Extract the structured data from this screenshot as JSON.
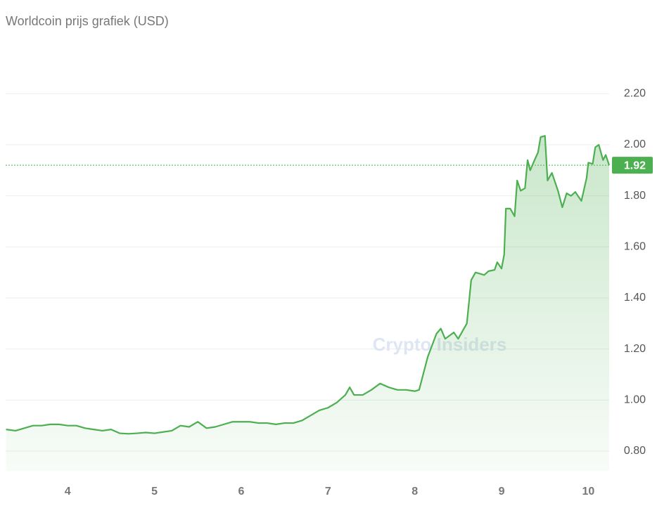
{
  "chart_data": {
    "type": "line",
    "title": "Worldcoin prijs grafiek (USD)",
    "watermark": "Crypto Insiders",
    "x": [
      3.29,
      3.4,
      3.5,
      3.6,
      3.7,
      3.8,
      3.9,
      4.0,
      4.1,
      4.2,
      4.3,
      4.4,
      4.5,
      4.6,
      4.7,
      4.8,
      4.9,
      5.0,
      5.1,
      5.2,
      5.3,
      5.4,
      5.5,
      5.6,
      5.7,
      5.8,
      5.9,
      6.0,
      6.1,
      6.2,
      6.3,
      6.4,
      6.5,
      6.6,
      6.7,
      6.8,
      6.9,
      7.0,
      7.1,
      7.2,
      7.25,
      7.3,
      7.4,
      7.5,
      7.6,
      7.7,
      7.8,
      7.9,
      8.0,
      8.05,
      8.15,
      8.25,
      8.3,
      8.35,
      8.45,
      8.5,
      8.6,
      8.65,
      8.7,
      8.8,
      8.85,
      8.92,
      8.95,
      9.0,
      9.03,
      9.05,
      9.1,
      9.15,
      9.18,
      9.22,
      9.27,
      9.3,
      9.33,
      9.38,
      9.42,
      9.45,
      9.5,
      9.53,
      9.58,
      9.65,
      9.7,
      9.75,
      9.8,
      9.85,
      9.92,
      9.98,
      10.0,
      10.05,
      10.08,
      10.12,
      10.17,
      10.2,
      10.24
    ],
    "series": [
      {
        "name": "Worldcoin",
        "color": "#4caf50",
        "values": [
          0.885,
          0.88,
          0.89,
          0.9,
          0.9,
          0.905,
          0.905,
          0.9,
          0.9,
          0.89,
          0.885,
          0.88,
          0.885,
          0.87,
          0.868,
          0.87,
          0.873,
          0.87,
          0.875,
          0.88,
          0.9,
          0.895,
          0.915,
          0.89,
          0.895,
          0.905,
          0.915,
          0.915,
          0.915,
          0.91,
          0.91,
          0.905,
          0.91,
          0.91,
          0.92,
          0.94,
          0.96,
          0.97,
          0.99,
          1.02,
          1.05,
          1.02,
          1.02,
          1.04,
          1.065,
          1.05,
          1.04,
          1.04,
          1.035,
          1.04,
          1.17,
          1.26,
          1.28,
          1.24,
          1.265,
          1.24,
          1.3,
          1.47,
          1.5,
          1.49,
          1.505,
          1.51,
          1.54,
          1.515,
          1.57,
          1.75,
          1.75,
          1.72,
          1.86,
          1.82,
          1.83,
          1.94,
          1.9,
          1.94,
          1.97,
          2.03,
          2.035,
          1.86,
          1.89,
          1.82,
          1.755,
          1.81,
          1.8,
          1.815,
          1.78,
          1.87,
          1.93,
          1.925,
          1.99,
          2.0,
          1.94,
          1.96,
          1.92
        ]
      }
    ],
    "last_price": 1.92,
    "xlim": [
      3.285,
      10.24
    ],
    "ylim": [
      0.723,
      2.3
    ],
    "xticks": [
      4,
      5,
      6,
      7,
      8,
      9,
      10
    ],
    "yticks": [
      {
        "value": 0.8,
        "label": "0.80"
      },
      {
        "value": 1.0,
        "label": "1.00"
      },
      {
        "value": 1.2,
        "label": "1.20"
      },
      {
        "value": 1.4,
        "label": "1.40"
      },
      {
        "value": 1.6,
        "label": "1.60"
      },
      {
        "value": 1.8,
        "label": "1.80"
      },
      {
        "value": 2.0,
        "label": "2.00"
      },
      {
        "value": 2.2,
        "label": "2.20"
      }
    ],
    "grid": true
  }
}
